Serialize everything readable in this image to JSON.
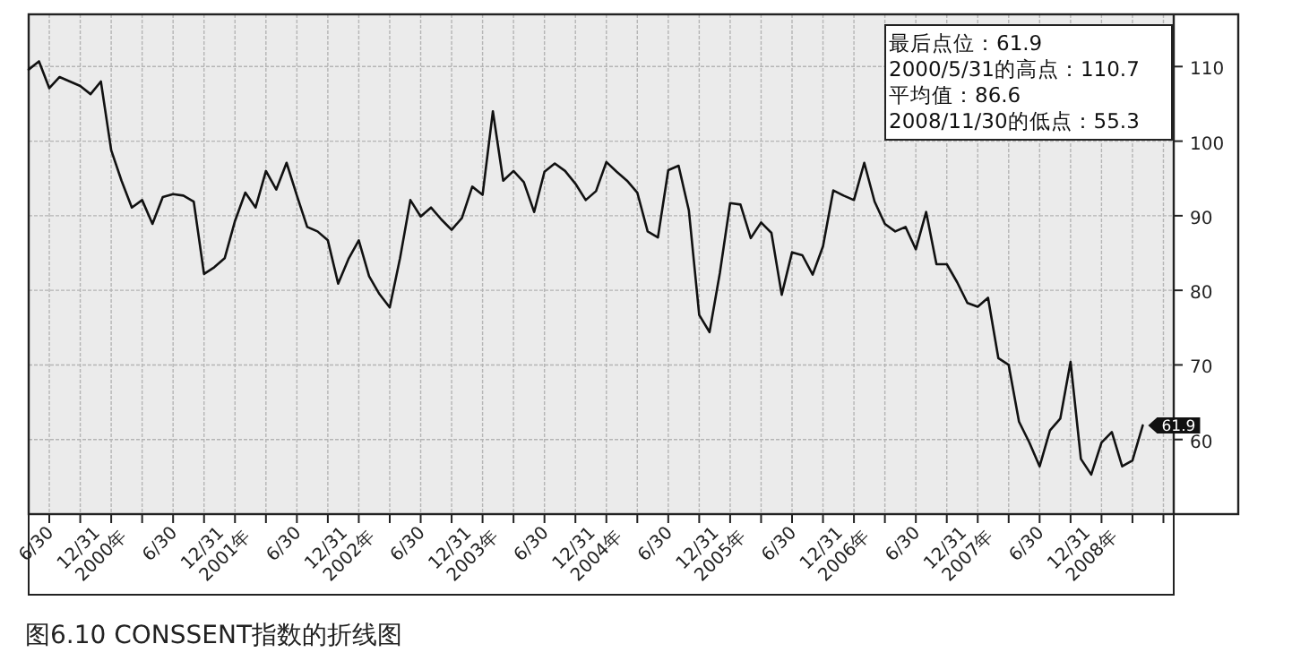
{
  "chart_data": {
    "type": "line",
    "x": [
      "2000-04",
      "2000-05",
      "2000-06",
      "2000-07",
      "2000-08",
      "2000-09",
      "2000-10",
      "2000-11",
      "2000-12",
      "2001-01",
      "2001-02",
      "2001-03",
      "2001-04",
      "2001-05",
      "2001-06",
      "2001-07",
      "2001-08",
      "2001-09",
      "2001-10",
      "2001-11",
      "2001-12",
      "2002-01",
      "2002-02",
      "2002-03",
      "2002-04",
      "2002-05",
      "2002-06",
      "2002-07",
      "2002-08",
      "2002-09",
      "2002-10",
      "2002-11",
      "2002-12",
      "2003-01",
      "2003-02",
      "2003-03",
      "2003-04",
      "2003-05",
      "2003-06",
      "2003-07",
      "2003-08",
      "2003-09",
      "2003-10",
      "2003-11",
      "2003-12",
      "2004-01",
      "2004-02",
      "2004-03",
      "2004-04",
      "2004-05",
      "2004-06",
      "2004-07",
      "2004-08",
      "2004-09",
      "2004-10",
      "2004-11",
      "2004-12",
      "2005-01",
      "2005-02",
      "2005-03",
      "2005-04",
      "2005-05",
      "2005-06",
      "2005-07",
      "2005-08",
      "2005-09",
      "2005-10",
      "2005-11",
      "2005-12",
      "2006-01",
      "2006-02",
      "2006-03",
      "2006-04",
      "2006-05",
      "2006-06",
      "2006-07",
      "2006-08",
      "2006-09",
      "2006-10",
      "2006-11",
      "2006-12",
      "2007-01",
      "2007-02",
      "2007-03",
      "2007-04",
      "2007-05",
      "2007-06",
      "2007-07",
      "2007-08",
      "2007-09",
      "2007-10",
      "2007-11",
      "2007-12",
      "2008-01",
      "2008-02",
      "2008-03",
      "2008-04",
      "2008-05",
      "2008-06",
      "2008-07",
      "2008-08",
      "2008-09",
      "2008-10",
      "2008-11",
      "2008-12",
      "2009-01",
      "2009-02",
      "2009-03",
      "2009-04"
    ],
    "series": [
      {
        "color": "#111111",
        "values": [
          109.6,
          110.7,
          107.1,
          108.6,
          108.0,
          107.4,
          106.3,
          108.0,
          98.8,
          94.7,
          91.1,
          92.1,
          88.9,
          92.5,
          92.9,
          92.7,
          91.9,
          82.2,
          83.1,
          84.3,
          89.3,
          93.1,
          91.1,
          96.0,
          93.5,
          97.1,
          92.7,
          88.5,
          87.9,
          86.7,
          80.9,
          84.2,
          86.7,
          81.9,
          79.5,
          77.7,
          84.3,
          92.1,
          89.9,
          91.1,
          89.5,
          88.1,
          89.7,
          93.9,
          92.8,
          104.0,
          94.7,
          96.0,
          94.5,
          90.5,
          95.9,
          97.0,
          96.0,
          94.3,
          92.1,
          93.3,
          97.2,
          95.9,
          94.7,
          93.1,
          87.9,
          87.1,
          96.1,
          96.7,
          90.7,
          76.7,
          74.4,
          82.3,
          91.7,
          91.5,
          87.0,
          89.1,
          87.7,
          79.4,
          85.1,
          84.7,
          82.1,
          85.9,
          93.4,
          92.7,
          92.1,
          97.1,
          91.9,
          88.9,
          87.9,
          88.5,
          85.5,
          90.5,
          83.5,
          83.5,
          81.1,
          78.3,
          77.8,
          79.0,
          70.9,
          70.0,
          62.4,
          59.6,
          56.4,
          61.2,
          62.8,
          70.4,
          57.4,
          55.3,
          59.6,
          61.0,
          56.4,
          57.2,
          61.9
        ],
        "value_labels": [
          null,
          null,
          null,
          null,
          null,
          null,
          null,
          null,
          null,
          null,
          null,
          null,
          null,
          null,
          null,
          null,
          null,
          null,
          null,
          null,
          null,
          null,
          null,
          null,
          null,
          null,
          null,
          null,
          null,
          null,
          null,
          null,
          null,
          null,
          null,
          null,
          null,
          null,
          null,
          null,
          null,
          null,
          null,
          null,
          null,
          null,
          null,
          null,
          null,
          null,
          null,
          null,
          null,
          null,
          null,
          null,
          null,
          null,
          null,
          null,
          null,
          null,
          null,
          null,
          null,
          null,
          null,
          null,
          null,
          null,
          null,
          null,
          null,
          null,
          null,
          null,
          null,
          null,
          null,
          null,
          null,
          null,
          null,
          null,
          null,
          null,
          null,
          null,
          null,
          null,
          null,
          null,
          null,
          null,
          null,
          null,
          null,
          null,
          null,
          null,
          null,
          null,
          null,
          null,
          null,
          null,
          null,
          null,
          "61.9"
        ]
      }
    ],
    "xlim": [
      "2000-04",
      "2009-07"
    ],
    "xticks": [
      {
        "value": "2000-06",
        "label": "6/30"
      },
      {
        "value": "2000-09",
        "label": null
      },
      {
        "value": "2000-12",
        "label": "12/31 2000年"
      },
      {
        "value": "2001-03",
        "label": null
      },
      {
        "value": "2001-06",
        "label": "6/30"
      },
      {
        "value": "2001-09",
        "label": null
      },
      {
        "value": "2001-12",
        "label": "12/31 2001年"
      },
      {
        "value": "2002-03",
        "label": null
      },
      {
        "value": "2002-06",
        "label": "6/30"
      },
      {
        "value": "2002-09",
        "label": null
      },
      {
        "value": "2002-12",
        "label": "12/31 2002年"
      },
      {
        "value": "2003-03",
        "label": null
      },
      {
        "value": "2003-06",
        "label": "6/30"
      },
      {
        "value": "2003-09",
        "label": null
      },
      {
        "value": "2003-12",
        "label": "12/31 2003年"
      },
      {
        "value": "2004-03",
        "label": null
      },
      {
        "value": "2004-06",
        "label": "6/30"
      },
      {
        "value": "2004-09",
        "label": null
      },
      {
        "value": "2004-12",
        "label": "12/31 2004年"
      },
      {
        "value": "2005-03",
        "label": null
      },
      {
        "value": "2005-06",
        "label": "6/30"
      },
      {
        "value": "2005-09",
        "label": null
      },
      {
        "value": "2005-12",
        "label": "12/31 2005年"
      },
      {
        "value": "2006-03",
        "label": null
      },
      {
        "value": "2006-06",
        "label": "6/30"
      },
      {
        "value": "2006-09",
        "label": null
      },
      {
        "value": "2006-12",
        "label": "12/31 2006年"
      },
      {
        "value": "2007-03",
        "label": null
      },
      {
        "value": "2007-06",
        "label": "6/30"
      },
      {
        "value": "2007-09",
        "label": null
      },
      {
        "value": "2007-12",
        "label": "12/31 2007年"
      },
      {
        "value": "2008-03",
        "label": null
      },
      {
        "value": "2008-06",
        "label": "6/30"
      },
      {
        "value": "2008-09",
        "label": null
      },
      {
        "value": "2008-12",
        "label": "12/31 2008年"
      },
      {
        "value": "2009-03",
        "label": null
      },
      {
        "value": "2009-06",
        "label": null
      }
    ],
    "ylim": [
      50,
      117
    ],
    "yticks": [
      60,
      70,
      80,
      90,
      100,
      110
    ],
    "grid": true,
    "annotations": [
      "最后点位：61.9",
      "2000/5/31的高点：110.7",
      "平均值：86.6",
      "2008/11/30的低点：55.3",
      "图6.10 CONSSENT指数的折线图"
    ]
  }
}
